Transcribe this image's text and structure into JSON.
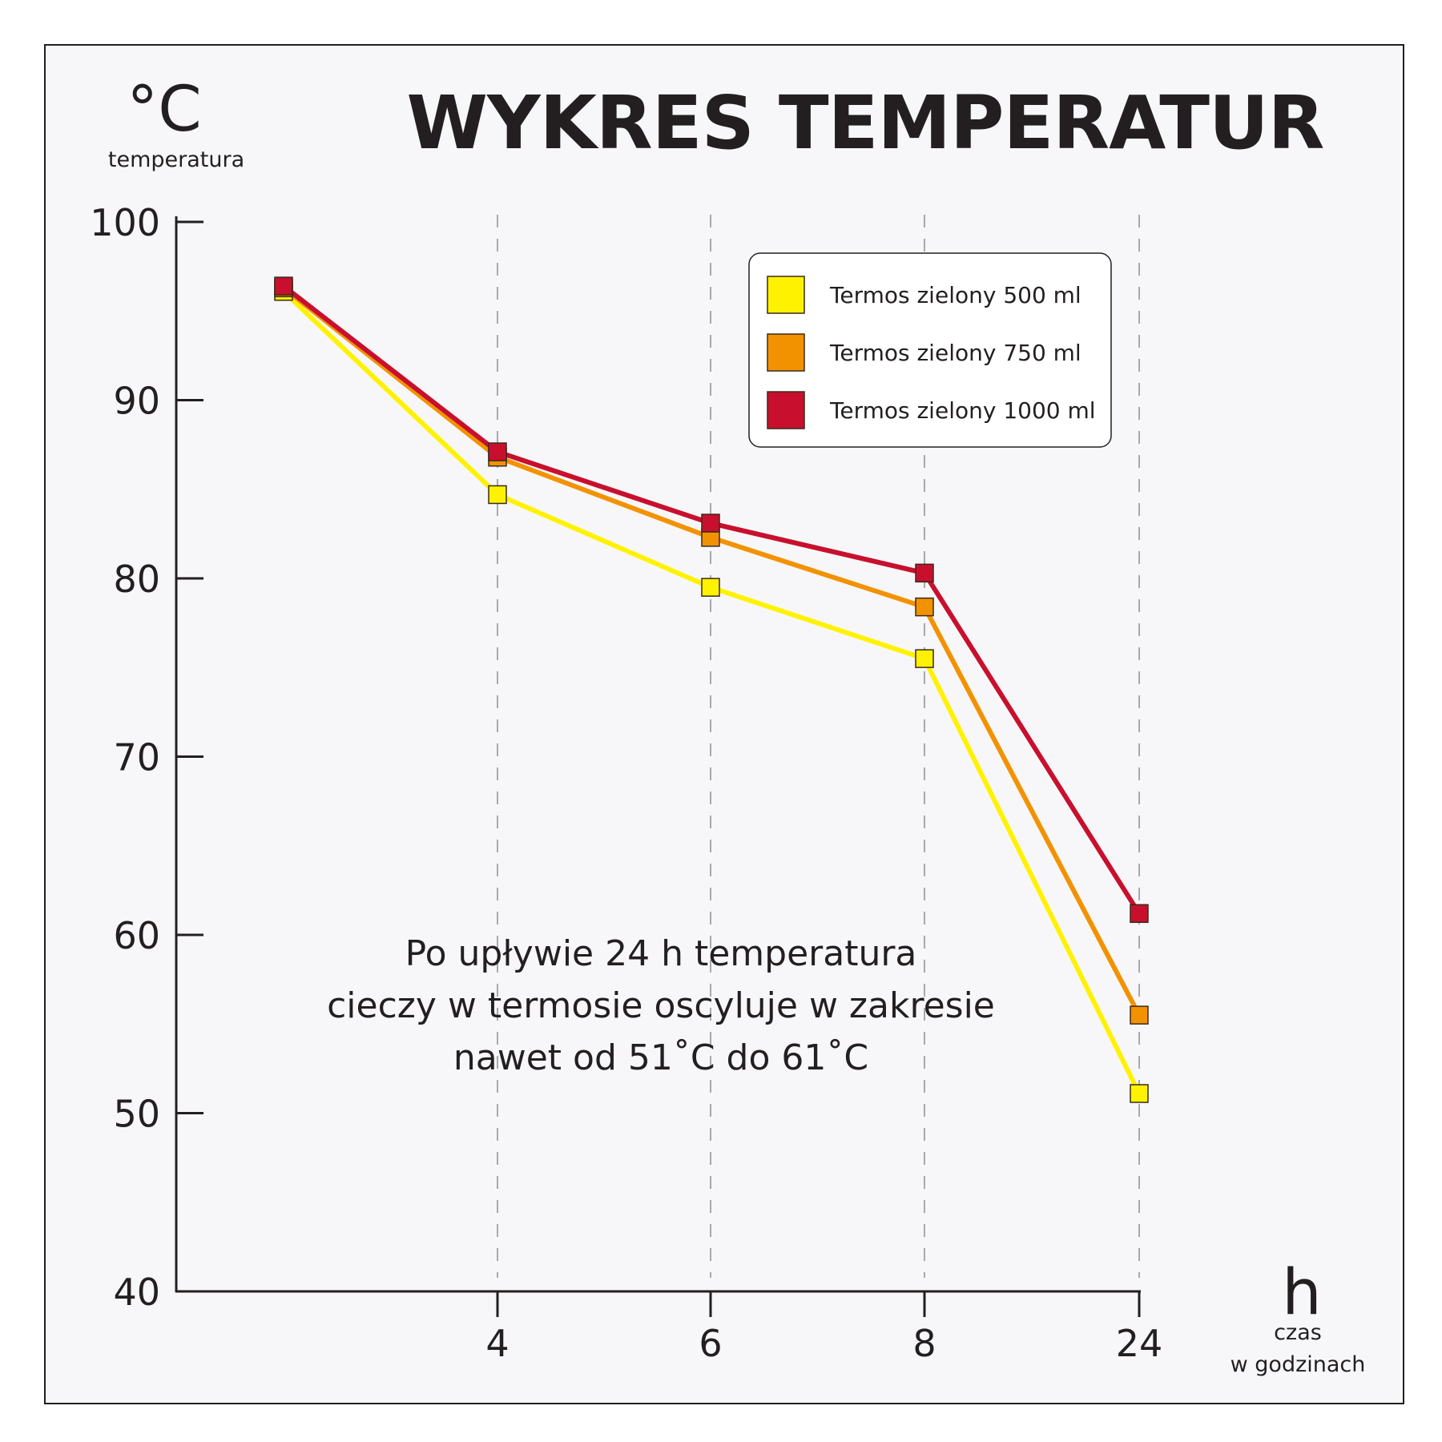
{
  "chart_data": {
    "type": "line",
    "title": "WYKRES TEMPERATUR",
    "y_unit": "°C",
    "ylabel": "temperatura",
    "x_unit": "h",
    "xlabel_lines": [
      "czas",
      "w godzinach"
    ],
    "x": [
      0,
      4,
      6,
      8,
      24
    ],
    "x_tick_labels": [
      "",
      "4",
      "6",
      "8",
      "24"
    ],
    "y_ticks": [
      40,
      50,
      60,
      70,
      80,
      90,
      100
    ],
    "ylim": [
      40,
      100
    ],
    "grid": "vertical dashed",
    "legend_position": "top-right",
    "series": [
      {
        "name": "Termos zielony 500 ml",
        "color": "#fff200",
        "values": [
          96.1,
          84.7,
          79.5,
          75.5,
          51.1
        ]
      },
      {
        "name": "Termos zielony 750 ml",
        "color": "#f39200",
        "values": [
          96.3,
          86.8,
          82.3,
          78.4,
          55.5
        ]
      },
      {
        "name": "Termos zielony 1000 ml",
        "color": "#c8102e",
        "values": [
          96.4,
          87.1,
          83.1,
          80.3,
          61.2
        ]
      }
    ],
    "annotation_lines": [
      "Po upływie 24 h temperatura",
      "cieczy w termosie oscyluje w zakresie",
      "nawet od 51˚C do 61˚C"
    ]
  }
}
